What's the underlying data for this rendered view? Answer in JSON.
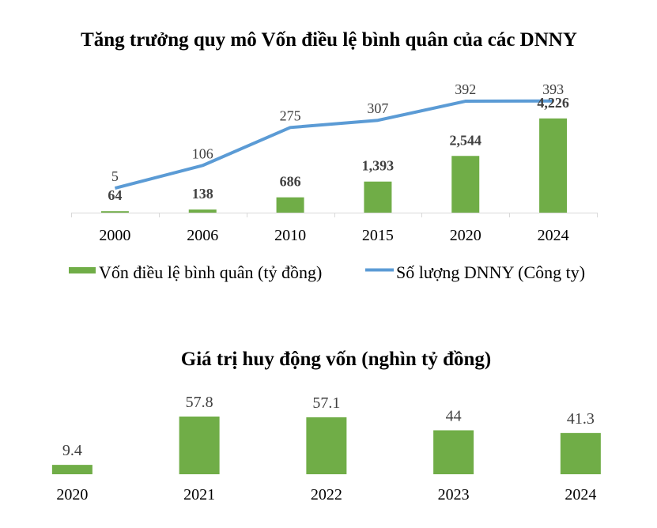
{
  "chart_data": [
    {
      "type": "bar",
      "title": "Tăng trưởng quy mô Vốn điều lệ bình quân của các DNNY",
      "categories": [
        "2000",
        "2006",
        "2010",
        "2015",
        "2020",
        "2024"
      ],
      "series": [
        {
          "name": "Vốn điều lệ bình quân (tỷ đồng)",
          "type": "bar",
          "axis": "primary",
          "values": [
            64,
            138,
            686,
            1393,
            2544,
            4226
          ],
          "labels": [
            "64",
            "138",
            "686",
            "1,393",
            "2,544",
            "4,226"
          ],
          "color": "#70AD47"
        },
        {
          "name": "Số lượng DNNY (Công ty)",
          "type": "line",
          "axis": "secondary",
          "values": [
            5,
            106,
            275,
            307,
            392,
            393
          ],
          "labels": [
            "5",
            "106",
            "275",
            "307",
            "392",
            "393"
          ],
          "color": "#5B9BD5"
        }
      ],
      "xlabel": "",
      "ylabel": "",
      "grid": false,
      "legend_position": "bottom"
    },
    {
      "type": "bar",
      "title": "Giá trị huy động vốn (nghìn tỷ đồng)",
      "categories": [
        "2020",
        "2021",
        "2022",
        "2023",
        "2024"
      ],
      "values": [
        9.4,
        57.8,
        57.1,
        44,
        41.3
      ],
      "labels": [
        "9.4",
        "57.8",
        "57.1",
        "44",
        "41.3"
      ],
      "color": "#70AD47",
      "xlabel": "",
      "ylabel": "",
      "grid": false,
      "legend_position": "none"
    }
  ]
}
